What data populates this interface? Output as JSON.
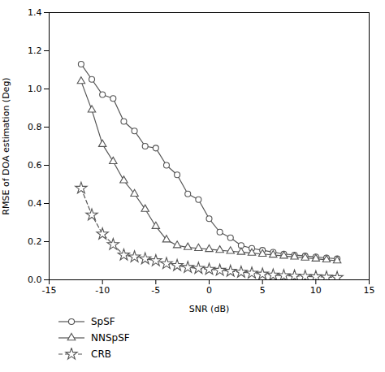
{
  "chart_data": {
    "type": "line",
    "xlabel": "SNR (dB)",
    "ylabel": "RMSE of DOA estimation (Deg)",
    "x": [
      -12,
      -11,
      -10,
      -9,
      -8,
      -7,
      -6,
      -5,
      -4,
      -3,
      -2,
      -1,
      0,
      1,
      2,
      3,
      4,
      5,
      6,
      7,
      8,
      9,
      10,
      11,
      12
    ],
    "series": [
      {
        "name": "SpSF",
        "color": "#555555",
        "marker": "circle",
        "line_style": "solid",
        "values": [
          1.13,
          1.05,
          0.97,
          0.95,
          0.83,
          0.78,
          0.7,
          0.69,
          0.6,
          0.55,
          0.45,
          0.42,
          0.32,
          0.25,
          0.22,
          0.18,
          0.165,
          0.155,
          0.145,
          0.135,
          0.13,
          0.125,
          0.12,
          0.115,
          0.11
        ]
      },
      {
        "name": "NNSpSF",
        "color": "#555555",
        "marker": "triangle",
        "line_style": "solid",
        "values": [
          1.04,
          0.89,
          0.71,
          0.62,
          0.52,
          0.45,
          0.37,
          0.28,
          0.21,
          0.18,
          0.17,
          0.165,
          0.16,
          0.155,
          0.15,
          0.145,
          0.14,
          0.135,
          0.13,
          0.125,
          0.12,
          0.115,
          0.11,
          0.105,
          0.1
        ]
      },
      {
        "name": "CRB",
        "color": "#555555",
        "marker": "star",
        "line_style": "dashed",
        "values": [
          0.48,
          0.34,
          0.24,
          0.185,
          0.13,
          0.12,
          0.11,
          0.1,
          0.085,
          0.075,
          0.065,
          0.06,
          0.055,
          0.05,
          0.045,
          0.04,
          0.035,
          0.03,
          0.025,
          0.022,
          0.02,
          0.018,
          0.016,
          0.014,
          0.012
        ]
      }
    ],
    "xlim": [
      -15,
      15
    ],
    "ylim": [
      0,
      1.4
    ],
    "xticks": [
      -15,
      -10,
      -5,
      0,
      5,
      10,
      15
    ],
    "yticks": [
      {
        "value": 0,
        "label": "0.0"
      },
      0.2,
      0.4,
      0.6,
      0.8,
      {
        "value": 1.0,
        "label": "1.0"
      },
      1.2,
      1.4
    ],
    "grid": false,
    "legend": "bottom"
  }
}
